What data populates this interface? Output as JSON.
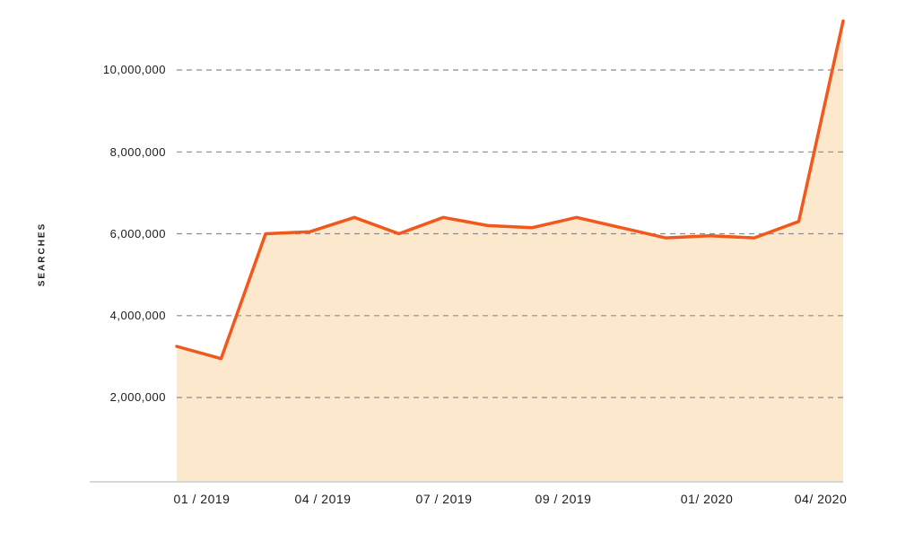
{
  "chart_data": {
    "type": "area",
    "title": "",
    "ylabel": "SEARCHES",
    "xlabel": "",
    "x": [
      "01/2019",
      "02/2019",
      "03/2019",
      "04/2019",
      "05/2019",
      "06/2019",
      "07/2019",
      "08/2019",
      "09/2019",
      "10/2019",
      "11/2019",
      "12/2019",
      "01/2020",
      "02/2020",
      "03/2020",
      "04/2020"
    ],
    "values": [
      3250000,
      2950000,
      6000000,
      6050000,
      6400000,
      6000000,
      6400000,
      6200000,
      6150000,
      6400000,
      6150000,
      5900000,
      5950000,
      5900000,
      6300000,
      11200000
    ],
    "x_tick_labels": [
      "01 / 2019",
      "04 / 2019",
      "07 / 2019",
      "09 / 2019",
      "01/ 2020",
      "04/ 2020"
    ],
    "y_tick_labels": [
      "10,000,000",
      "8,000,000",
      "6,000,000",
      "4,000,000",
      "2,000,000"
    ],
    "y_tick_values": [
      10000000,
      8000000,
      6000000,
      4000000,
      2000000
    ],
    "ylim": [
      0,
      11500000
    ],
    "grid": "horizontal-dashed",
    "legend": "none",
    "colors": {
      "line": "#f2571c",
      "fill": "#fce8cd",
      "grid": "#8c8c8c",
      "axis": "#cccccc",
      "text": "#1a1a1a"
    }
  }
}
